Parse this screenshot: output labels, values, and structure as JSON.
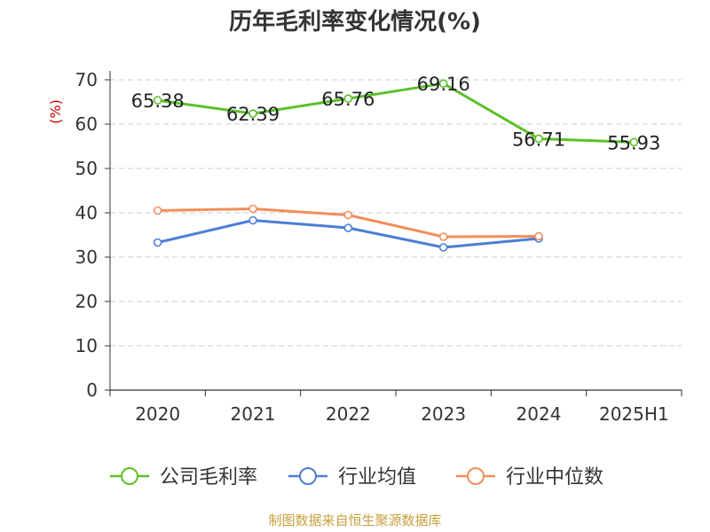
{
  "chart_data": {
    "type": "line",
    "title": "历年毛利率变化情况(%)",
    "ylabel": "(%)",
    "categories": [
      "2020",
      "2021",
      "2022",
      "2023",
      "2024",
      "2025H1"
    ],
    "ylim": [
      0,
      70
    ],
    "yticks": [
      0,
      10,
      20,
      30,
      40,
      50,
      60,
      70
    ],
    "grid": true,
    "legend_position": "bottom",
    "series": [
      {
        "name": "公司毛利率",
        "color": "#5cc02a",
        "show_labels": true,
        "values": [
          65.38,
          62.39,
          65.76,
          69.16,
          56.71,
          55.93
        ]
      },
      {
        "name": "行业均值",
        "color": "#4a7fd6",
        "show_labels": false,
        "values": [
          33.3,
          38.3,
          36.6,
          32.2,
          34.2,
          null
        ]
      },
      {
        "name": "行业中位数",
        "color": "#f28e5a",
        "show_labels": false,
        "values": [
          40.5,
          40.9,
          39.5,
          34.6,
          34.7,
          null
        ]
      }
    ]
  },
  "source_note": "制图数据来自恒生聚源数据库"
}
